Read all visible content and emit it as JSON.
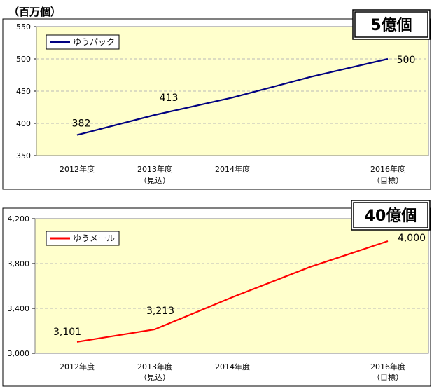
{
  "unit_label": "（百万個）",
  "colors": {
    "plot_bg": "#FFFFCC",
    "grid": "#B8B8B8",
    "chart1_line": "#000080",
    "chart2_line": "#FF0000",
    "frame": "#000000"
  },
  "chart_data": [
    {
      "type": "line",
      "title": "",
      "badge": "5億個",
      "categories": [
        "2012年度",
        "2013年度",
        "2014年度",
        "",
        "2016年度"
      ],
      "category_sublabels": [
        "",
        "（見込）",
        "",
        "",
        "（目標）"
      ],
      "series": [
        {
          "name": "ゆうパック",
          "values": [
            382,
            413,
            440,
            472,
            500
          ]
        }
      ],
      "data_labels": [
        {
          "index": 0,
          "text": "382"
        },
        {
          "index": 1,
          "text": "413"
        },
        {
          "index": 4,
          "text": "500"
        }
      ],
      "yticks": [
        "350",
        "400",
        "450",
        "500",
        "550"
      ],
      "ytick_values": [
        350,
        400,
        450,
        500,
        550
      ],
      "ylim": [
        350,
        550
      ],
      "grid": true,
      "legend": "top-left"
    },
    {
      "type": "line",
      "title": "",
      "badge": "40億個",
      "categories": [
        "2012年度",
        "2013年度",
        "2014年度",
        "",
        "2016年度"
      ],
      "category_sublabels": [
        "",
        "（見込）",
        "",
        "",
        "（目標）"
      ],
      "series": [
        {
          "name": "ゆうメール",
          "values": [
            3101,
            3213,
            3500,
            3770,
            4000
          ]
        }
      ],
      "data_labels": [
        {
          "index": 0,
          "text": "3,101"
        },
        {
          "index": 1,
          "text": "3,213"
        },
        {
          "index": 4,
          "text": "4,000"
        }
      ],
      "yticks": [
        "3,000",
        "3,400",
        "3,800",
        "4,200"
      ],
      "ytick_values": [
        3000,
        3400,
        3800,
        4200
      ],
      "ylim": [
        3000,
        4200
      ],
      "grid": true,
      "legend": "top-left"
    }
  ]
}
